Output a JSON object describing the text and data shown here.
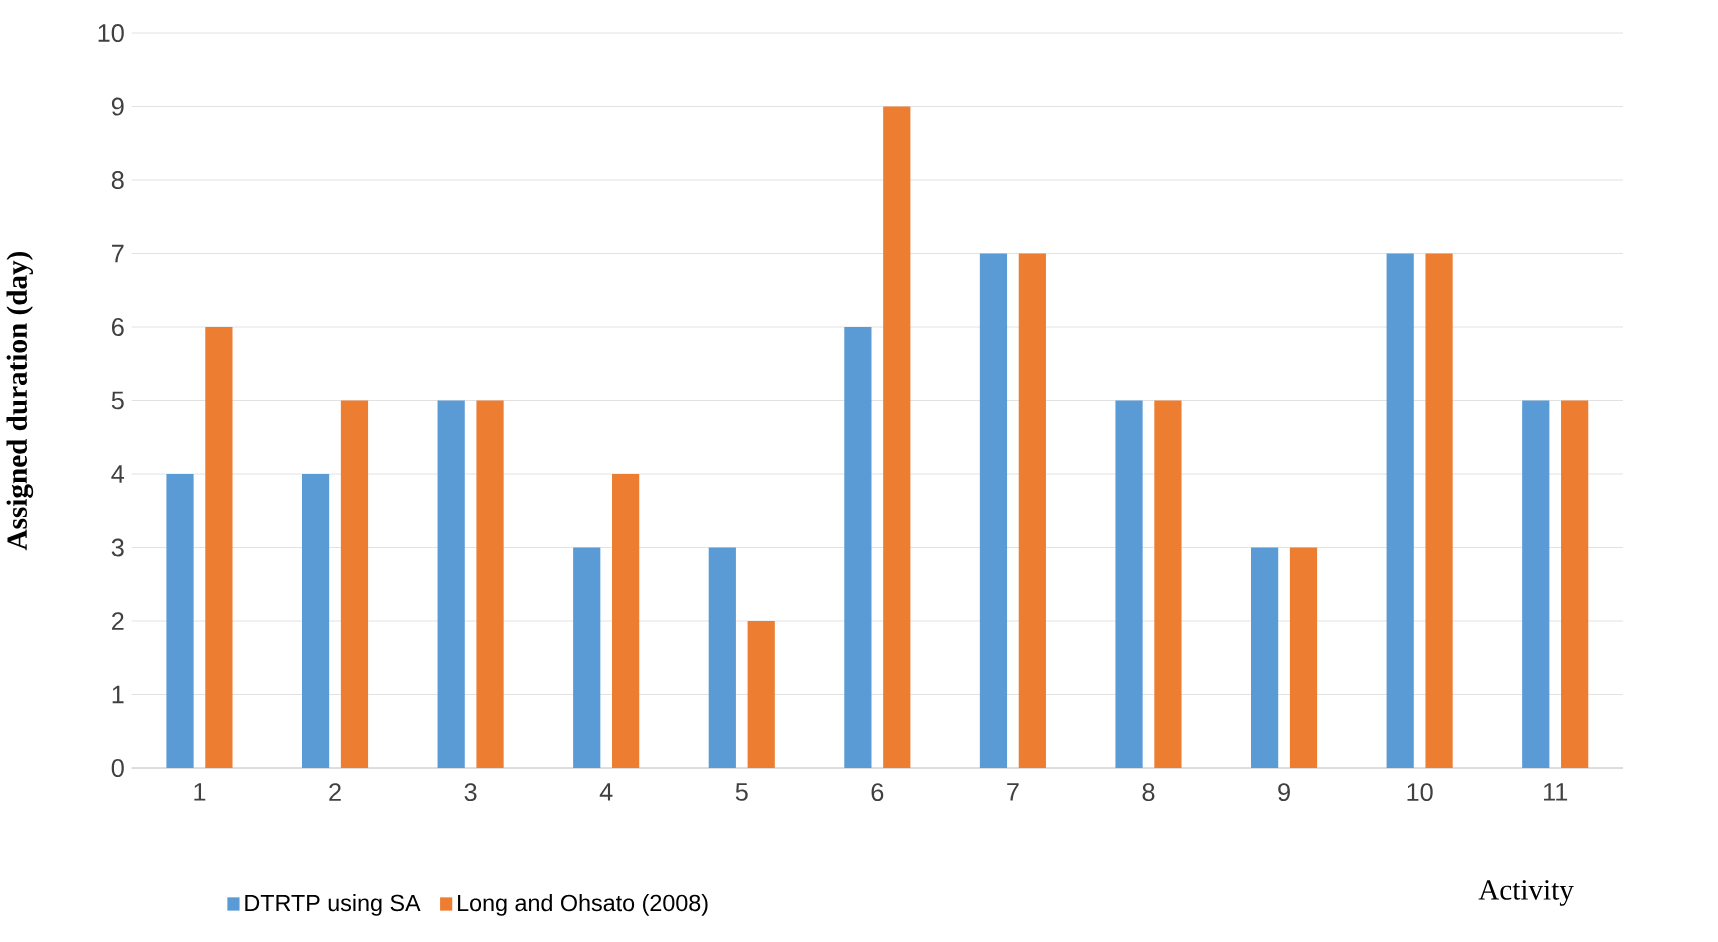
{
  "chart_data": {
    "type": "bar",
    "xlabel": "Activity",
    "ylabel": "Assigned duration (day)",
    "categories": [
      "1",
      "2",
      "3",
      "4",
      "5",
      "6",
      "7",
      "8",
      "9",
      "10",
      "11"
    ],
    "series": [
      {
        "name": "DTRTP using SA",
        "color": "#5b9bd5",
        "values": [
          4,
          4,
          5,
          3,
          3,
          6,
          7,
          5,
          3,
          7,
          5
        ]
      },
      {
        "name": "Long and Ohsato (2008)",
        "color": "#ed7d31",
        "values": [
          6,
          5,
          5,
          4,
          2,
          9,
          7,
          5,
          3,
          7,
          5
        ]
      }
    ],
    "ylim": [
      0,
      10
    ],
    "yticks": [
      0,
      1,
      2,
      3,
      4,
      5,
      6,
      7,
      8,
      9,
      10
    ],
    "grid": "y",
    "legend": "bottom left"
  }
}
